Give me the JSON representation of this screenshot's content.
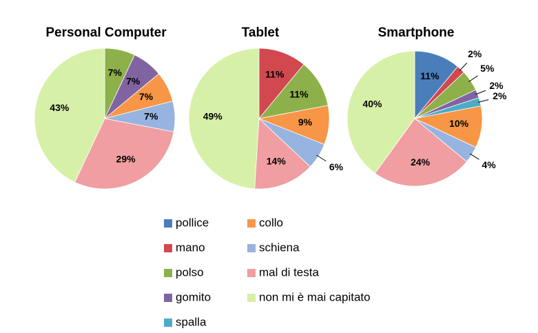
{
  "chart_data": {
    "type": "pie",
    "categories": [
      "pollice",
      "mano",
      "polso",
      "gomito",
      "spalla",
      "collo",
      "schiena",
      "mal di testa",
      "non mi è mai capitato"
    ],
    "colors": [
      "#4a7ebb",
      "#d2484f",
      "#8db04a",
      "#8064a2",
      "#4bacc6",
      "#f79646",
      "#97b3e0",
      "#f09ea1",
      "#d7f0a8"
    ],
    "series": [
      {
        "name": "Personal Computer",
        "values": [
          0,
          0,
          7,
          7,
          0,
          7,
          7,
          29,
          43
        ],
        "value_labels": [
          null,
          null,
          "7%",
          "7%",
          null,
          "7%",
          "7%",
          "29%",
          "43%"
        ]
      },
      {
        "name": "Tablet",
        "values": [
          0,
          11,
          11,
          0,
          0,
          9,
          6,
          14,
          49
        ],
        "value_labels": [
          null,
          "11%",
          "11%",
          null,
          null,
          "9%",
          "6%",
          "14%",
          "49%"
        ]
      },
      {
        "name": "Smartphone",
        "values": [
          11,
          2,
          5,
          2,
          2,
          10,
          4,
          24,
          40
        ],
        "value_labels": [
          "11%",
          "2%",
          "5%",
          "2%",
          "2%",
          "10%",
          "4%",
          "24%",
          "40%"
        ]
      }
    ]
  }
}
